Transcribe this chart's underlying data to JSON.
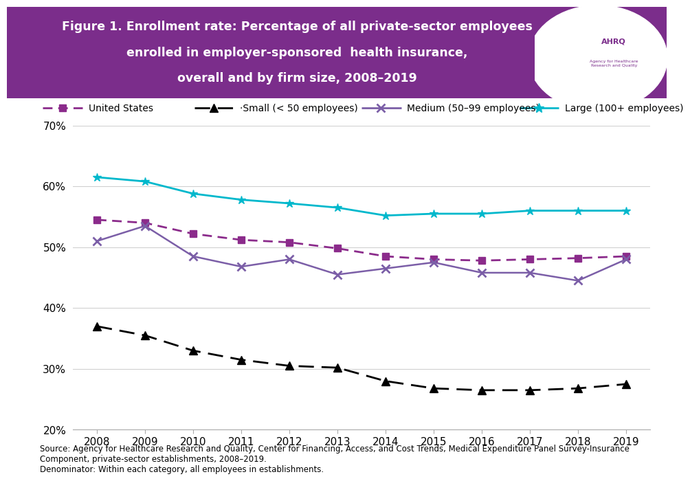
{
  "years": [
    2008,
    2009,
    2010,
    2011,
    2012,
    2013,
    2014,
    2015,
    2016,
    2017,
    2018,
    2019
  ],
  "united_states": [
    54.5,
    54.0,
    52.2,
    51.2,
    50.8,
    49.8,
    48.5,
    48.0,
    47.8,
    48.0,
    48.2,
    48.5
  ],
  "small": [
    37.0,
    35.5,
    33.0,
    31.5,
    30.5,
    30.2,
    28.0,
    26.8,
    26.5,
    26.5,
    26.8,
    27.5
  ],
  "medium": [
    51.0,
    53.5,
    48.5,
    46.8,
    48.0,
    45.5,
    46.5,
    47.5,
    45.8,
    45.8,
    44.5,
    48.0
  ],
  "large": [
    61.5,
    60.8,
    58.8,
    57.8,
    57.2,
    56.5,
    55.2,
    55.5,
    55.5,
    56.0,
    56.0,
    56.0
  ],
  "us_color": "#8B2B8B",
  "small_color": "#000000",
  "medium_color": "#7B5EA7",
  "large_color": "#00B8CC",
  "header_bg": "#7B2D8B",
  "header_text_color": "#FFFFFF",
  "ylim_min": 20,
  "ylim_max": 70,
  "yticks": [
    20,
    30,
    40,
    50,
    60,
    70
  ],
  "source_text": "Source: Agency for Healthcare Research and Quality, Center for Financing, Access, and Cost Trends, Medical Expenditure Panel Survey-Insurance\nComponent, private-sector establishments, 2008–2019.\nDenominator: Within each category, all employees in establishments.",
  "legend_labels": [
    "United States",
    "·Small (< 50 employees)",
    "Medium (50–99 employees)",
    "Large (100+ employees)"
  ],
  "title_line1": "Figure 1. Enrollment rate: Percentage of all private-sector employees",
  "title_line2": "enrolled in employer-sponsored  health insurance,",
  "title_line3": "overall and by firm size, 2008–2019"
}
